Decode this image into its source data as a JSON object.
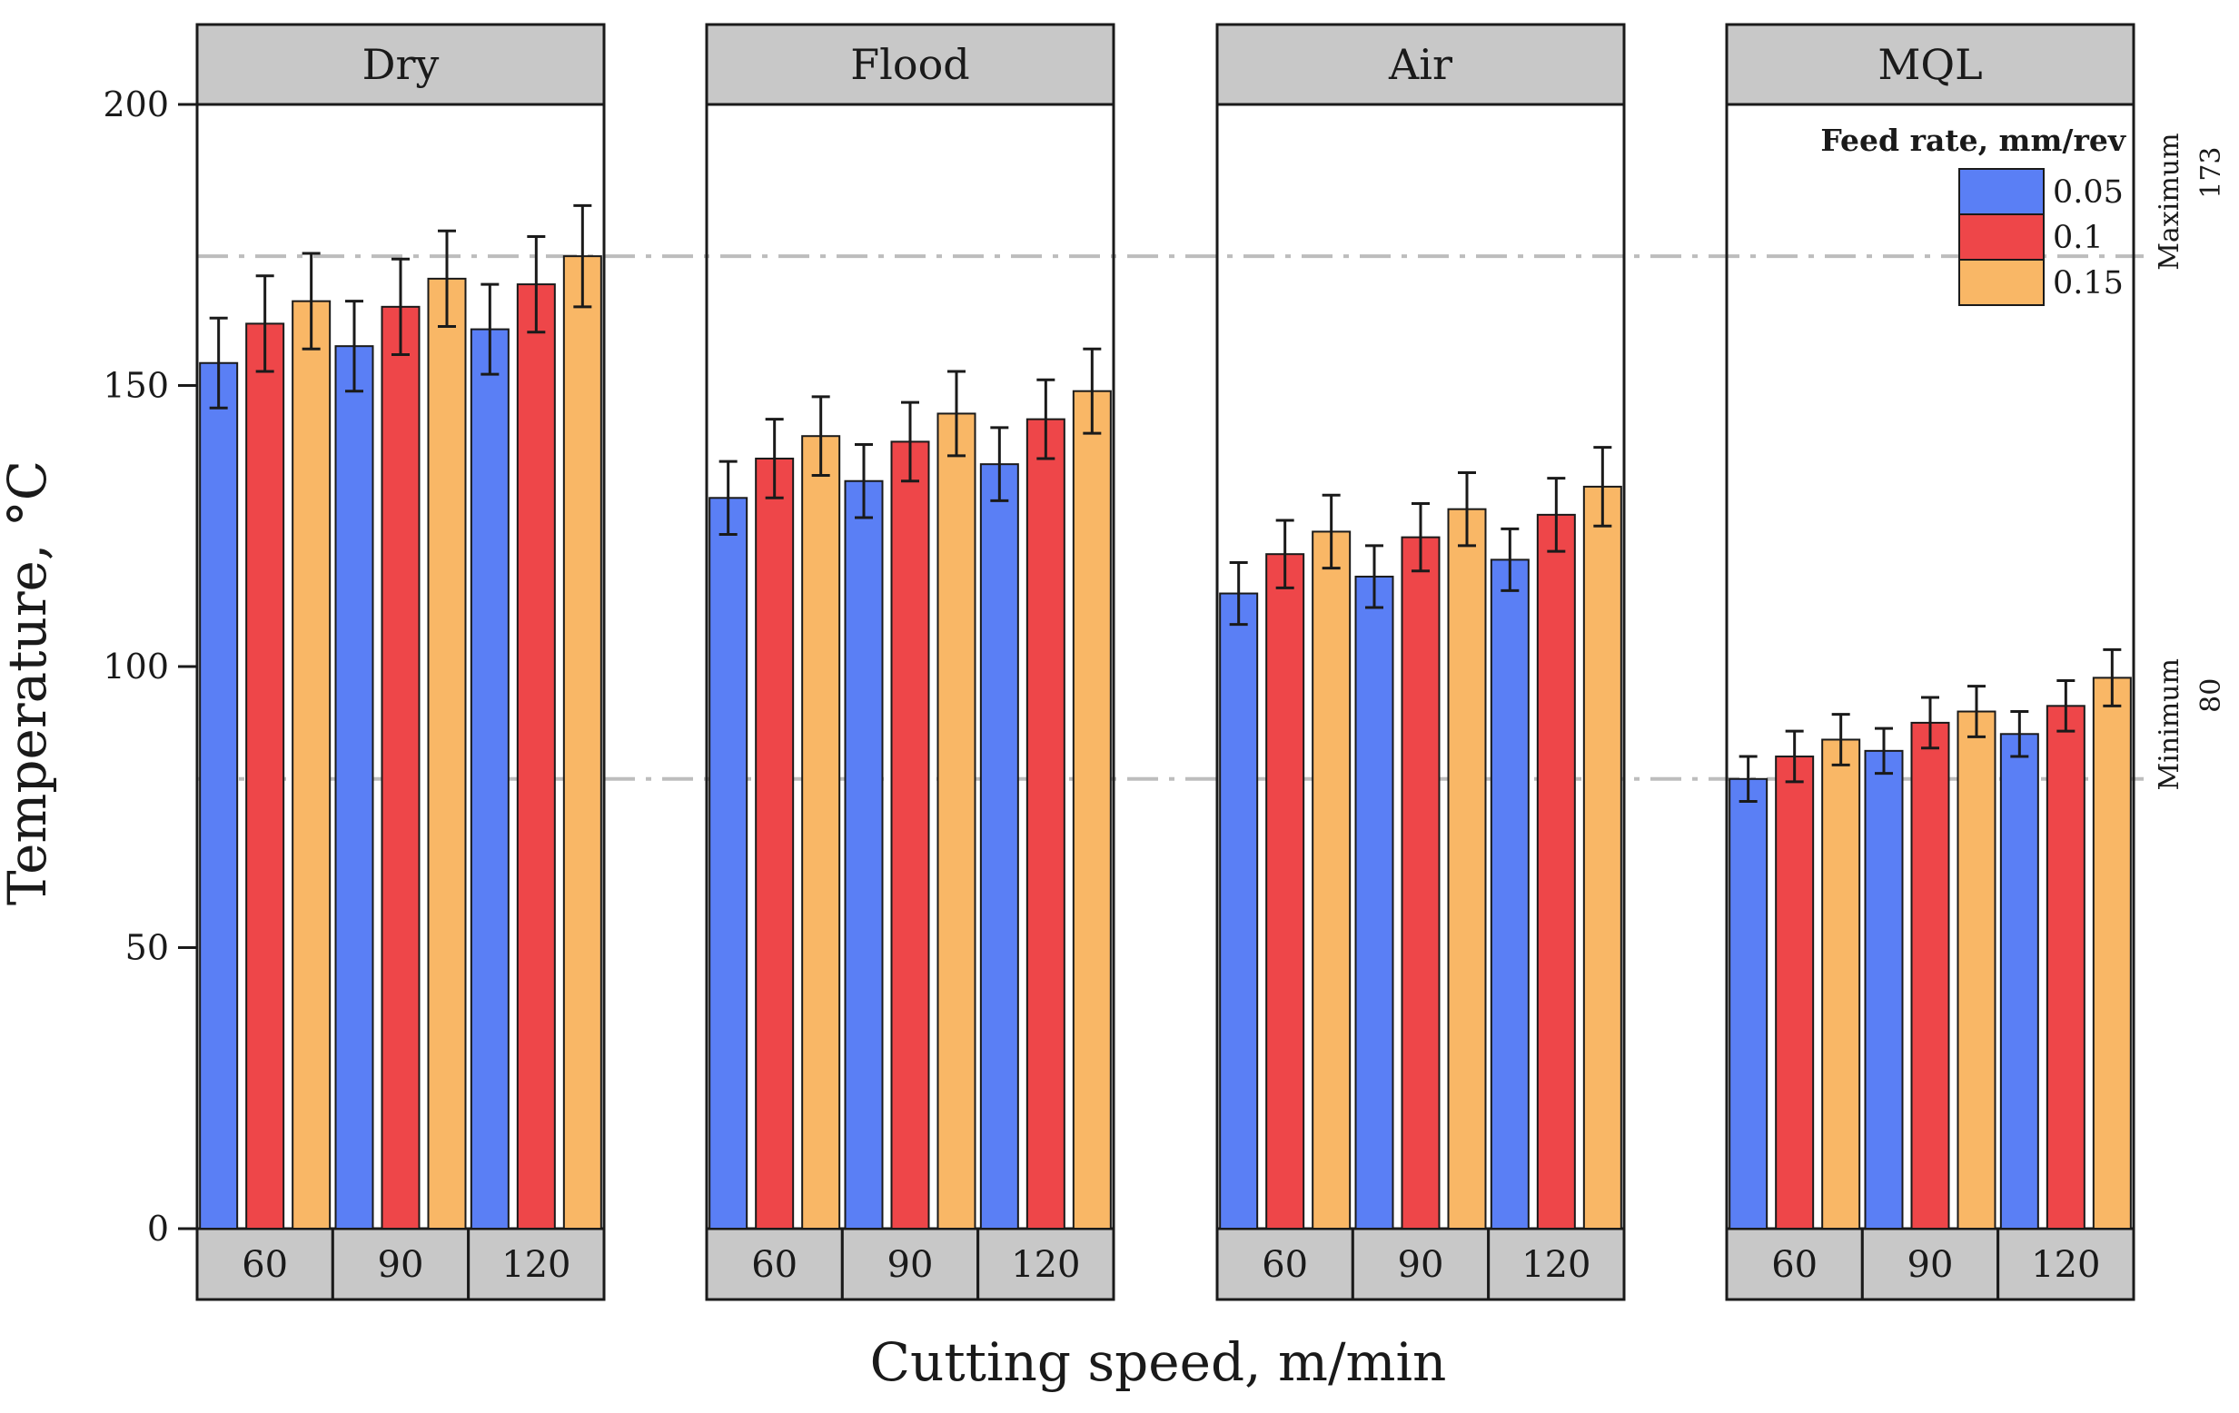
{
  "chart_data": {
    "type": "bar",
    "xlabel": "Cutting speed, m/min",
    "ylabel": "Temperature, °C",
    "ylim": [
      0,
      200
    ],
    "yticks": [
      "0",
      "50",
      "100",
      "150",
      "200"
    ],
    "ytick_values": [
      0,
      50,
      100,
      150,
      200
    ],
    "facets": [
      "Dry",
      "Flood",
      "Air",
      "MQL"
    ],
    "categories": [
      "60",
      "90",
      "120"
    ],
    "legend": {
      "title": "Feed rate, mm/rev",
      "position": "top-right"
    },
    "series": [
      {
        "name": "0.05",
        "color": "#5a7ff5",
        "values": {
          "Dry": [
            154,
            157,
            160
          ],
          "Flood": [
            130,
            133,
            136
          ],
          "Air": [
            113,
            116,
            119
          ],
          "MQL": [
            80,
            85,
            88
          ]
        },
        "errors": {
          "Dry": [
            8,
            8,
            8
          ],
          "Flood": [
            6.5,
            6.5,
            6.5
          ],
          "Air": [
            5.5,
            5.5,
            5.5
          ],
          "MQL": [
            4,
            4,
            4
          ]
        }
      },
      {
        "name": "0.1",
        "color": "#ee4649",
        "values": {
          "Dry": [
            161,
            164,
            168
          ],
          "Flood": [
            137,
            140,
            144
          ],
          "Air": [
            120,
            123,
            127
          ],
          "MQL": [
            84,
            90,
            93
          ]
        },
        "errors": {
          "Dry": [
            8.5,
            8.5,
            8.5
          ],
          "Flood": [
            7,
            7,
            7
          ],
          "Air": [
            6,
            6,
            6.5
          ],
          "MQL": [
            4.5,
            4.5,
            4.5
          ]
        }
      },
      {
        "name": "0.15",
        "color": "#f9b766",
        "values": {
          "Dry": [
            165,
            169,
            173
          ],
          "Flood": [
            141,
            145,
            149
          ],
          "Air": [
            124,
            128,
            132
          ],
          "MQL": [
            87,
            92,
            98
          ]
        },
        "errors": {
          "Dry": [
            8.5,
            8.5,
            9
          ],
          "Flood": [
            7,
            7.5,
            7.5
          ],
          "Air": [
            6.5,
            6.5,
            7
          ],
          "MQL": [
            4.5,
            4.5,
            5
          ]
        }
      }
    ],
    "reference_lines": [
      {
        "label": "Maximum",
        "value": 173,
        "value_label": "173",
        "style": "dash-dot"
      },
      {
        "label": "Minimum",
        "value": 80,
        "value_label": "80",
        "style": "dash-dot"
      }
    ],
    "colors": {
      "strip_background": "#c8c8c8",
      "reference_line": "#bdbdbd",
      "frame": "#1a1a1a"
    }
  }
}
